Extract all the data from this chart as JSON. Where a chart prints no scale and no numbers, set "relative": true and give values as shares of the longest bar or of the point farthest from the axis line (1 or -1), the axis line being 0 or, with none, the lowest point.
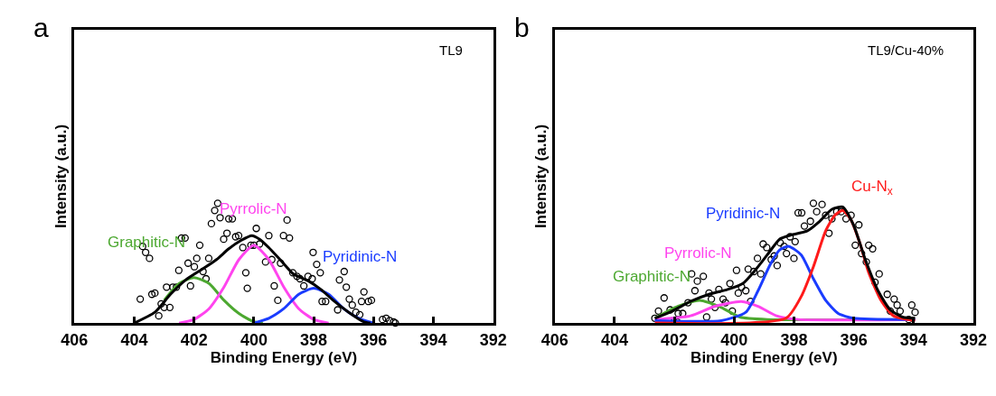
{
  "chart_data": [
    {
      "type": "line",
      "title": "a",
      "xlabel": "Binding Energy (eV)",
      "ylabel": "Intensity (a.u.)",
      "relative": true,
      "xlim": [
        406,
        392
      ],
      "xticks": [
        406,
        404,
        402,
        400,
        398,
        396,
        394,
        392
      ],
      "tick_labels": "x",
      "legend": false,
      "line_style": "solid",
      "annotations": [
        "TL9"
      ],
      "series": [
        {
          "type": "scatter",
          "marker": "circle",
          "color": "#000000",
          "x": [
            403.8,
            403.72,
            403.62,
            403.49,
            403.41,
            403.31,
            403.18,
            403.1,
            403.0,
            402.81,
            402.92,
            402.71,
            402.59,
            402.51,
            402.42,
            402.3,
            402.2,
            402.12,
            401.99,
            401.91,
            401.81,
            401.7,
            401.6,
            401.51,
            401.42,
            401.31,
            401.21,
            401.13,
            401.01,
            400.9,
            400.84,
            400.72,
            400.61,
            400.51,
            400.37,
            400.27,
            400.22,
            400.1,
            400.0,
            399.92,
            399.81,
            399.61,
            399.5,
            399.4,
            399.32,
            399.2,
            399.11,
            399.01,
            398.89,
            398.81,
            398.7,
            398.56,
            398.46,
            398.33,
            398.19,
            398.05,
            398.02,
            397.9,
            397.78,
            397.72,
            397.6,
            397.2,
            397.14,
            396.98,
            396.91,
            396.81,
            396.71,
            396.59,
            396.46,
            396.32,
            396.4,
            396.17,
            396.07,
            395.7,
            395.58,
            395.46,
            395.33,
            395.27
          ],
          "values": [
            0.2,
            0.64,
            0.59,
            0.54,
            0.24,
            0.25,
            0.06,
            0.16,
            0.13,
            0.13,
            0.3,
            0.3,
            0.3,
            0.44,
            0.71,
            0.71,
            0.5,
            0.31,
            0.47,
            0.54,
            0.65,
            0.43,
            0.37,
            0.54,
            0.83,
            0.94,
            1.0,
            0.88,
            0.7,
            0.75,
            0.87,
            0.87,
            0.72,
            0.73,
            0.63,
            0.42,
            0.29,
            0.65,
            0.65,
            0.79,
            0.66,
            0.51,
            0.73,
            0.53,
            0.31,
            0.19,
            0.5,
            0.73,
            0.86,
            0.71,
            0.42,
            0.39,
            0.37,
            0.31,
            0.39,
            0.37,
            0.59,
            0.49,
            0.42,
            0.18,
            0.18,
            0.11,
            0.36,
            0.43,
            0.3,
            0.2,
            0.15,
            0.09,
            0.07,
            0.26,
            0.18,
            0.18,
            0.19,
            0.03,
            0.04,
            0.02,
            0.01,
            0.0
          ]
        },
        {
          "name": "Graphitic-N",
          "type": "line",
          "color": "#4ca830",
          "x": [
            403.0,
            402.5,
            402.0,
            401.5,
            401.0,
            400.5,
            400.0,
            399.7
          ],
          "values": [
            0.19,
            0.33,
            0.38,
            0.33,
            0.19,
            0.08,
            0.01,
            0.0
          ]
        },
        {
          "name": "Pyrrolic-N",
          "type": "line",
          "color": "#ff44ee",
          "x": [
            402.5,
            402.0,
            401.5,
            401.0,
            400.5,
            400.0,
            399.5,
            399.0,
            398.5,
            398.0,
            397.5
          ],
          "values": [
            0.0,
            0.03,
            0.12,
            0.3,
            0.53,
            0.65,
            0.53,
            0.3,
            0.12,
            0.03,
            0.0
          ]
        },
        {
          "name": "Pyridinic-N",
          "type": "line",
          "color": "#1a3cff",
          "x": [
            400.0,
            399.5,
            399.0,
            398.5,
            398.0,
            397.5,
            397.0,
            396.5,
            396.0
          ],
          "values": [
            0.0,
            0.04,
            0.12,
            0.24,
            0.29,
            0.24,
            0.12,
            0.04,
            0.0
          ]
        },
        {
          "color": "#000000",
          "x": [
            404.0,
            403.31,
            402.79,
            402.28,
            401.66,
            401.25,
            400.84,
            400.43,
            400.07,
            399.81,
            399.5,
            399.09,
            398.68,
            398.17,
            397.76,
            397.35,
            396.83,
            396.32,
            396.11
          ],
          "values": [
            0.0,
            0.09,
            0.24,
            0.36,
            0.46,
            0.53,
            0.62,
            0.69,
            0.73,
            0.7,
            0.63,
            0.52,
            0.41,
            0.35,
            0.28,
            0.19,
            0.09,
            0.01,
            0.0
          ]
        }
      ]
    },
    {
      "type": "line",
      "title": "b",
      "xlabel": "Binding Energy (eV)",
      "ylabel": "Intensity (a.u.)",
      "relative": true,
      "xlim": [
        406,
        392
      ],
      "xticks": [
        406,
        404,
        402,
        400,
        398,
        396,
        394,
        392
      ],
      "tick_labels": "x",
      "legend": false,
      "line_style": "solid",
      "annotations": [
        "TL9/Cu-40%"
      ],
      "series": [
        {
          "type": "scatter",
          "marker": "circle",
          "color": "#000000",
          "x": [
            402.65,
            402.53,
            402.34,
            402.14,
            402.01,
            401.91,
            401.87,
            401.72,
            401.54,
            401.42,
            401.31,
            401.23,
            401.03,
            400.92,
            400.84,
            400.76,
            400.64,
            400.51,
            400.37,
            400.29,
            400.14,
            400.06,
            399.92,
            399.86,
            399.75,
            399.61,
            399.53,
            399.45,
            399.34,
            399.22,
            399.11,
            399.03,
            398.91,
            398.76,
            398.66,
            398.56,
            398.46,
            398.33,
            398.25,
            398.13,
            398.0,
            397.96,
            397.86,
            397.74,
            397.65,
            397.45,
            397.35,
            397.24,
            397.06,
            396.94,
            396.83,
            396.73,
            396.57,
            396.42,
            396.26,
            396.09,
            395.95,
            395.83,
            395.74,
            395.58,
            395.5,
            395.37,
            395.29,
            395.15,
            394.88,
            394.78,
            394.65,
            394.55,
            394.45,
            394.16,
            394.06,
            393.95
          ],
          "values": [
            0.04,
            0.1,
            0.21,
            0.11,
            0.01,
            0.01,
            0.08,
            0.08,
            0.17,
            0.41,
            0.27,
            0.35,
            0.39,
            0.05,
            0.25,
            0.2,
            0.13,
            0.28,
            0.2,
            0.17,
            0.33,
            0.1,
            0.44,
            0.25,
            0.3,
            0.27,
            0.45,
            0.18,
            0.43,
            0.54,
            0.41,
            0.66,
            0.63,
            0.53,
            0.56,
            0.48,
            0.67,
            0.64,
            0.58,
            0.72,
            0.54,
            0.68,
            0.92,
            0.92,
            0.81,
            0.85,
            1.0,
            0.93,
            0.99,
            0.9,
            0.75,
            0.87,
            0.93,
            0.93,
            0.87,
            0.9,
            0.65,
            0.82,
            0.58,
            0.51,
            0.65,
            0.62,
            0.34,
            0.41,
            0.24,
            0.1,
            0.2,
            0.15,
            0.1,
            0.03,
            0.15,
            0.09
          ]
        },
        {
          "name": "Graphitic-N",
          "type": "line",
          "color": "#4ca830",
          "x": [
            402.65,
            401.87,
            401.15,
            400.43,
            399.81,
            398.89,
            393.95
          ],
          "values": [
            0.04,
            0.14,
            0.19,
            0.13,
            0.05,
            0.03,
            0.03
          ]
        },
        {
          "name": "Pyrrolic-N",
          "type": "line",
          "color": "#ff44ee",
          "x": [
            402.65,
            401.46,
            400.64,
            399.76,
            399.2,
            398.58,
            397.86,
            393.95
          ],
          "values": [
            0.03,
            0.06,
            0.14,
            0.18,
            0.14,
            0.06,
            0.03,
            0.03
          ]
        },
        {
          "name": "Pyridinic-N",
          "type": "line",
          "color": "#1a3cff",
          "x": [
            402.65,
            400.43,
            399.61,
            399.2,
            398.79,
            398.48,
            398.17,
            397.76,
            397.35,
            396.94,
            396.52,
            396.01,
            393.95
          ],
          "values": [
            0.02,
            0.02,
            0.09,
            0.27,
            0.49,
            0.61,
            0.64,
            0.57,
            0.37,
            0.19,
            0.08,
            0.04,
            0.03
          ]
        },
        {
          "name": "Cu-N$_{x}$",
          "type": "line",
          "color": "#ff1a1a",
          "x": [
            402.65,
            398.27,
            397.76,
            397.35,
            396.94,
            396.63,
            396.37,
            396.11,
            395.8,
            395.5,
            395.09,
            394.67,
            393.95
          ],
          "values": [
            0.0,
            0.04,
            0.22,
            0.47,
            0.77,
            0.9,
            0.94,
            0.87,
            0.67,
            0.42,
            0.19,
            0.06,
            0.02
          ]
        },
        {
          "color": "#000000",
          "x": [
            402.65,
            402.07,
            401.46,
            400.84,
            400.22,
            399.71,
            399.3,
            398.89,
            398.48,
            398.17,
            397.55,
            397.14,
            396.73,
            396.37,
            396.01,
            395.6,
            395.19,
            394.78,
            394.37,
            393.95
          ],
          "values": [
            0.04,
            0.1,
            0.18,
            0.24,
            0.28,
            0.33,
            0.44,
            0.57,
            0.7,
            0.73,
            0.77,
            0.85,
            0.95,
            0.97,
            0.82,
            0.52,
            0.27,
            0.11,
            0.05,
            0.04
          ]
        }
      ]
    }
  ]
}
